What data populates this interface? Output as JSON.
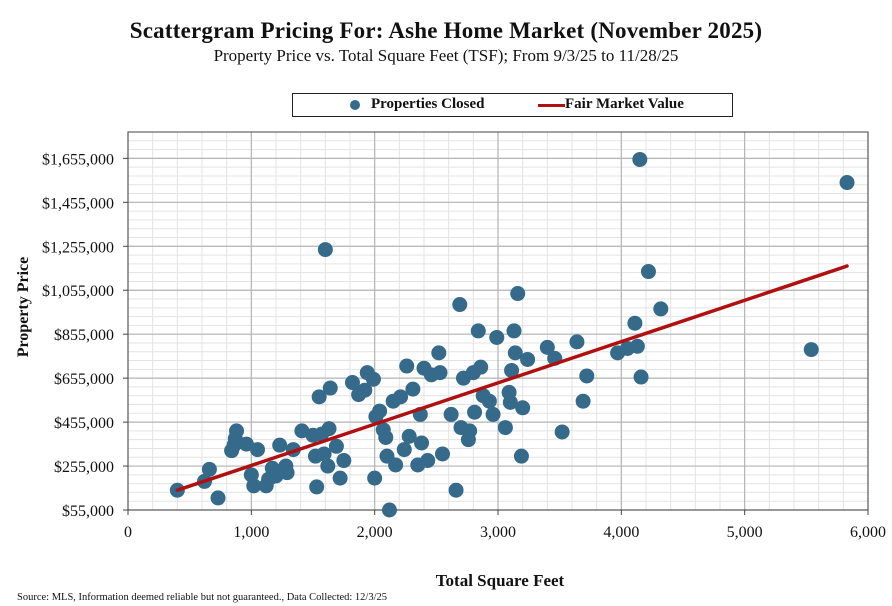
{
  "chart_data": {
    "type": "scatter",
    "title": "Scattergram Pricing For: Ashe Home Market (November 2025)",
    "subtitle": "Property Price vs. Total Square Feet (TSF); From 9/3/25 to 11/28/25",
    "xlabel": "Total Square Feet",
    "ylabel": "Property Price",
    "xlim": [
      0,
      6000
    ],
    "ylim": [
      55000,
      1775000
    ],
    "x_ticks": [
      0,
      1000,
      2000,
      3000,
      4000,
      5000,
      6000
    ],
    "x_tick_labels": [
      "0",
      "1,000",
      "2,000",
      "3,000",
      "4,000",
      "5,000",
      "6,000"
    ],
    "y_ticks": [
      55000,
      255000,
      455000,
      655000,
      855000,
      1055000,
      1255000,
      1455000,
      1655000
    ],
    "y_tick_labels": [
      "$55,000",
      "$255,000",
      "$455,000",
      "$655,000",
      "$855,000",
      "$1,055,000",
      "$1,255,000",
      "$1,455,000",
      "$1,655,000"
    ],
    "grid": true,
    "legend": [
      "Properties Closed",
      "Fair Market Value"
    ],
    "legend_position": "top-center",
    "series": [
      {
        "name": "Properties Closed",
        "kind": "scatter",
        "color": "#356a8a",
        "points": [
          [
            400,
            145000
          ],
          [
            620,
            185000
          ],
          [
            660,
            240000
          ],
          [
            730,
            110000
          ],
          [
            840,
            325000
          ],
          [
            860,
            350000
          ],
          [
            870,
            380000
          ],
          [
            880,
            415000
          ],
          [
            960,
            355000
          ],
          [
            1000,
            215000
          ],
          [
            1020,
            165000
          ],
          [
            1050,
            330000
          ],
          [
            1120,
            165000
          ],
          [
            1140,
            195000
          ],
          [
            1170,
            245000
          ],
          [
            1200,
            210000
          ],
          [
            1230,
            350000
          ],
          [
            1280,
            255000
          ],
          [
            1290,
            225000
          ],
          [
            1340,
            330000
          ],
          [
            1410,
            415000
          ],
          [
            1500,
            395000
          ],
          [
            1520,
            300000
          ],
          [
            1530,
            160000
          ],
          [
            1550,
            570000
          ],
          [
            1570,
            400000
          ],
          [
            1590,
            310000
          ],
          [
            1600,
            1240000
          ],
          [
            1620,
            255000
          ],
          [
            1630,
            425000
          ],
          [
            1640,
            610000
          ],
          [
            1690,
            345000
          ],
          [
            1720,
            200000
          ],
          [
            1750,
            280000
          ],
          [
            1820,
            635000
          ],
          [
            1870,
            580000
          ],
          [
            1920,
            600000
          ],
          [
            1940,
            680000
          ],
          [
            1990,
            650000
          ],
          [
            2000,
            200000
          ],
          [
            2010,
            480000
          ],
          [
            2040,
            505000
          ],
          [
            2070,
            420000
          ],
          [
            2090,
            385000
          ],
          [
            2100,
            300000
          ],
          [
            2120,
            55000
          ],
          [
            2150,
            550000
          ],
          [
            2170,
            260000
          ],
          [
            2210,
            570000
          ],
          [
            2240,
            330000
          ],
          [
            2260,
            710000
          ],
          [
            2280,
            390000
          ],
          [
            2310,
            605000
          ],
          [
            2350,
            260000
          ],
          [
            2370,
            490000
          ],
          [
            2380,
            360000
          ],
          [
            2400,
            700000
          ],
          [
            2430,
            280000
          ],
          [
            2460,
            670000
          ],
          [
            2520,
            770000
          ],
          [
            2530,
            680000
          ],
          [
            2550,
            310000
          ],
          [
            2620,
            490000
          ],
          [
            2660,
            145000
          ],
          [
            2690,
            990000
          ],
          [
            2700,
            430000
          ],
          [
            2720,
            655000
          ],
          [
            2760,
            375000
          ],
          [
            2770,
            415000
          ],
          [
            2800,
            680000
          ],
          [
            2810,
            500000
          ],
          [
            2840,
            870000
          ],
          [
            2860,
            705000
          ],
          [
            2880,
            575000
          ],
          [
            2930,
            550000
          ],
          [
            2960,
            490000
          ],
          [
            2990,
            840000
          ],
          [
            3060,
            430000
          ],
          [
            3090,
            590000
          ],
          [
            3100,
            545000
          ],
          [
            3110,
            690000
          ],
          [
            3130,
            870000
          ],
          [
            3140,
            770000
          ],
          [
            3160,
            1040000
          ],
          [
            3190,
            300000
          ],
          [
            3200,
            520000
          ],
          [
            3240,
            740000
          ],
          [
            3400,
            795000
          ],
          [
            3460,
            745000
          ],
          [
            3520,
            410000
          ],
          [
            3640,
            820000
          ],
          [
            3690,
            550000
          ],
          [
            3720,
            665000
          ],
          [
            3970,
            770000
          ],
          [
            4050,
            790000
          ],
          [
            4110,
            905000
          ],
          [
            4130,
            800000
          ],
          [
            4150,
            1650000
          ],
          [
            4160,
            660000
          ],
          [
            4220,
            1140000
          ],
          [
            4320,
            970000
          ],
          [
            5540,
            785000
          ],
          [
            5830,
            1545000
          ]
        ]
      },
      {
        "name": "Fair Market Value",
        "kind": "line",
        "color": "#b01010",
        "points": [
          [
            400,
            145000
          ],
          [
            5830,
            1165000
          ]
        ]
      }
    ]
  },
  "source_note": "Source: MLS, Information deemed reliable but not guaranteed., Data Collected: 12/3/25"
}
